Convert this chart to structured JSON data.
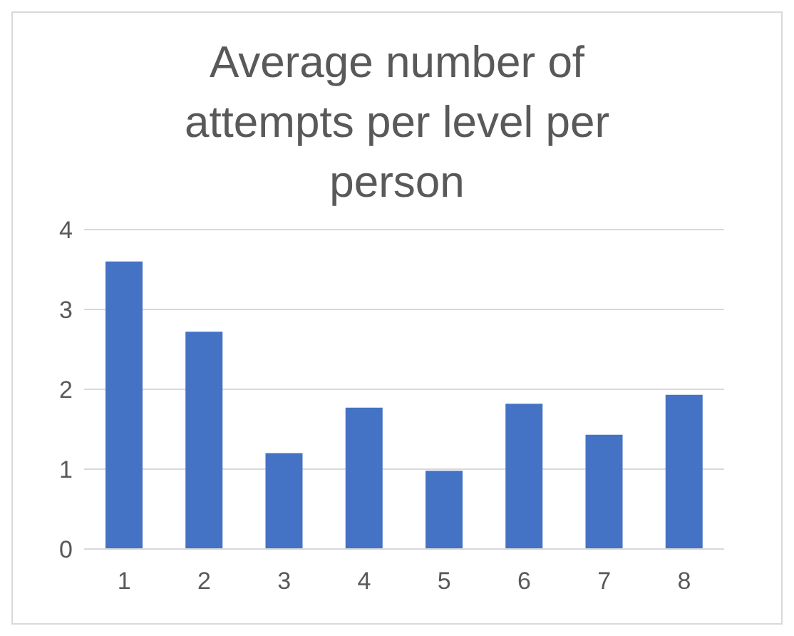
{
  "chart_data": {
    "type": "bar",
    "title": "Average number of attempts per level per person",
    "categories": [
      "1",
      "2",
      "3",
      "4",
      "5",
      "6",
      "7",
      "8"
    ],
    "values": [
      3.6,
      2.72,
      1.2,
      1.77,
      0.98,
      1.82,
      1.43,
      1.93
    ],
    "color": "#4472c4",
    "ylim": [
      0,
      4
    ],
    "yticks": [
      0,
      1,
      2,
      3,
      4
    ],
    "grid": "y",
    "legend": false
  }
}
